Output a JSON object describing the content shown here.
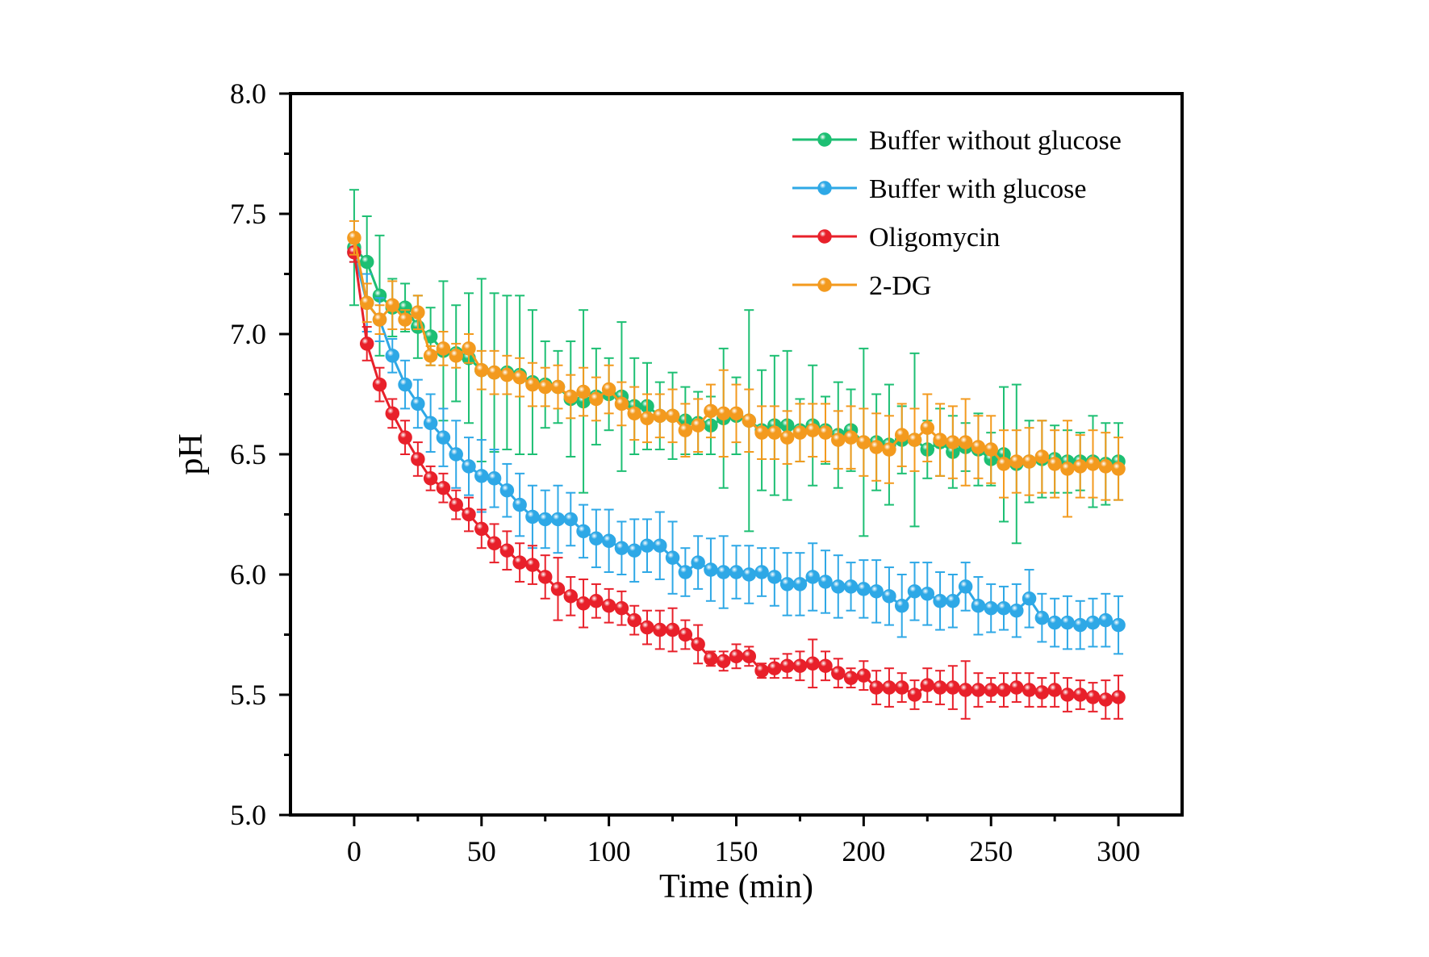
{
  "chart_data": {
    "type": "line",
    "title": "",
    "xlabel": "Time (min)",
    "ylabel": "pH",
    "xlim": [
      -25,
      325
    ],
    "ylim": [
      5.0,
      8.0
    ],
    "x_ticks": [
      0,
      50,
      100,
      150,
      200,
      250,
      300
    ],
    "x_tick_labels": [
      "0",
      "50",
      "100",
      "150",
      "200",
      "250",
      "300"
    ],
    "y_ticks": [
      5.0,
      5.5,
      6.0,
      6.5,
      7.0,
      7.5,
      8.0
    ],
    "y_tick_labels": [
      "5.0",
      "5.5",
      "6.0",
      "6.5",
      "7.0",
      "7.5",
      "8.0"
    ],
    "grid": false,
    "legend_position": "top-right",
    "x": [
      0,
      5,
      10,
      15,
      20,
      25,
      30,
      35,
      40,
      45,
      50,
      55,
      60,
      65,
      70,
      75,
      80,
      85,
      90,
      95,
      100,
      105,
      110,
      115,
      120,
      125,
      130,
      135,
      140,
      145,
      150,
      155,
      160,
      165,
      170,
      175,
      180,
      185,
      190,
      195,
      200,
      205,
      210,
      215,
      220,
      225,
      230,
      235,
      240,
      245,
      250,
      255,
      260,
      265,
      270,
      275,
      280,
      285,
      290,
      295,
      300
    ],
    "series": [
      {
        "name": "Buffer without glucose",
        "color": "#1dbf73",
        "values": [
          7.36,
          7.3,
          7.16,
          7.11,
          7.11,
          7.03,
          6.99,
          6.93,
          6.92,
          6.9,
          6.85,
          6.84,
          6.84,
          6.83,
          6.8,
          6.79,
          6.78,
          6.73,
          6.72,
          6.74,
          6.75,
          6.74,
          6.7,
          6.7,
          6.66,
          6.66,
          6.64,
          6.63,
          6.62,
          6.65,
          6.66,
          6.64,
          6.6,
          6.62,
          6.62,
          6.6,
          6.62,
          6.6,
          6.58,
          6.6,
          6.55,
          6.55,
          6.54,
          6.56,
          6.56,
          6.52,
          6.55,
          6.51,
          6.53,
          6.52,
          6.48,
          6.5,
          6.46,
          6.47,
          6.48,
          6.48,
          6.47,
          6.47,
          6.47,
          6.46,
          6.47
        ],
        "errors": [
          0.24,
          0.19,
          0.25,
          0.12,
          0.1,
          0.13,
          0.12,
          0.29,
          0.2,
          0.27,
          0.38,
          0.33,
          0.32,
          0.33,
          0.3,
          0.18,
          0.15,
          0.24,
          0.38,
          0.2,
          0.15,
          0.31,
          0.2,
          0.18,
          0.14,
          0.18,
          0.14,
          0.13,
          0.12,
          0.29,
          0.16,
          0.46,
          0.25,
          0.29,
          0.31,
          0.13,
          0.25,
          0.14,
          0.22,
          0.17,
          0.39,
          0.2,
          0.25,
          0.14,
          0.36,
          0.12,
          0.14,
          0.15,
          0.1,
          0.15,
          0.11,
          0.28,
          0.33,
          0.17,
          0.16,
          0.14,
          0.13,
          0.12,
          0.19,
          0.17,
          0.16
        ]
      },
      {
        "name": "Buffer with glucose",
        "color": "#2ea8e6",
        "values": [
          7.34,
          7.13,
          7.06,
          6.91,
          6.79,
          6.71,
          6.63,
          6.57,
          6.5,
          6.45,
          6.41,
          6.4,
          6.35,
          6.29,
          6.24,
          6.23,
          6.23,
          6.23,
          6.18,
          6.15,
          6.14,
          6.11,
          6.1,
          6.12,
          6.12,
          6.07,
          6.01,
          6.05,
          6.02,
          6.01,
          6.01,
          6.0,
          6.01,
          5.99,
          5.96,
          5.96,
          5.99,
          5.97,
          5.95,
          5.95,
          5.94,
          5.93,
          5.91,
          5.87,
          5.93,
          5.92,
          5.89,
          5.89,
          5.95,
          5.87,
          5.86,
          5.86,
          5.85,
          5.9,
          5.82,
          5.8,
          5.8,
          5.79,
          5.8,
          5.81,
          5.79
        ],
        "errors": [
          0.04,
          0.12,
          0.09,
          0.07,
          0.1,
          0.1,
          0.12,
          0.12,
          0.14,
          0.12,
          0.15,
          0.12,
          0.11,
          0.13,
          0.13,
          0.12,
          0.14,
          0.11,
          0.11,
          0.12,
          0.13,
          0.11,
          0.13,
          0.11,
          0.14,
          0.15,
          0.1,
          0.11,
          0.13,
          0.15,
          0.11,
          0.12,
          0.1,
          0.12,
          0.13,
          0.13,
          0.14,
          0.13,
          0.13,
          0.1,
          0.12,
          0.13,
          0.12,
          0.13,
          0.12,
          0.13,
          0.12,
          0.11,
          0.1,
          0.12,
          0.1,
          0.09,
          0.11,
          0.12,
          0.1,
          0.1,
          0.11,
          0.1,
          0.1,
          0.11,
          0.12
        ]
      },
      {
        "name": "Oligomycin",
        "color": "#e8202a",
        "values": [
          7.34,
          6.96,
          6.79,
          6.67,
          6.57,
          6.48,
          6.4,
          6.36,
          6.29,
          6.25,
          6.19,
          6.13,
          6.1,
          6.05,
          6.04,
          5.99,
          5.94,
          5.91,
          5.88,
          5.89,
          5.87,
          5.86,
          5.81,
          5.78,
          5.77,
          5.77,
          5.75,
          5.71,
          5.65,
          5.64,
          5.66,
          5.66,
          5.6,
          5.61,
          5.62,
          5.62,
          5.63,
          5.62,
          5.59,
          5.57,
          5.58,
          5.53,
          5.53,
          5.53,
          5.5,
          5.54,
          5.53,
          5.53,
          5.52,
          5.52,
          5.52,
          5.52,
          5.53,
          5.52,
          5.51,
          5.52,
          5.5,
          5.5,
          5.49,
          5.48,
          5.49
        ],
        "errors": [
          0.04,
          0.07,
          0.07,
          0.06,
          0.07,
          0.07,
          0.05,
          0.06,
          0.06,
          0.07,
          0.08,
          0.08,
          0.08,
          0.08,
          0.08,
          0.09,
          0.13,
          0.08,
          0.1,
          0.07,
          0.07,
          0.07,
          0.06,
          0.07,
          0.08,
          0.09,
          0.06,
          0.08,
          0.03,
          0.04,
          0.05,
          0.04,
          0.03,
          0.04,
          0.05,
          0.06,
          0.1,
          0.06,
          0.06,
          0.04,
          0.06,
          0.07,
          0.08,
          0.06,
          0.06,
          0.07,
          0.07,
          0.09,
          0.12,
          0.07,
          0.05,
          0.07,
          0.06,
          0.07,
          0.06,
          0.07,
          0.07,
          0.06,
          0.06,
          0.08,
          0.09
        ]
      },
      {
        "name": "2-DG",
        "color": "#f39a1e",
        "values": [
          7.4,
          7.13,
          7.06,
          7.12,
          7.06,
          7.09,
          6.91,
          6.94,
          6.91,
          6.94,
          6.85,
          6.84,
          6.83,
          6.82,
          6.79,
          6.78,
          6.78,
          6.74,
          6.76,
          6.73,
          6.77,
          6.71,
          6.67,
          6.65,
          6.66,
          6.66,
          6.6,
          6.62,
          6.68,
          6.67,
          6.67,
          6.64,
          6.59,
          6.59,
          6.57,
          6.59,
          6.6,
          6.59,
          6.56,
          6.57,
          6.55,
          6.53,
          6.52,
          6.58,
          6.56,
          6.61,
          6.56,
          6.55,
          6.55,
          6.53,
          6.52,
          6.46,
          6.47,
          6.47,
          6.49,
          6.46,
          6.44,
          6.45,
          6.46,
          6.45,
          6.44
        ],
        "errors": [
          0.07,
          0.08,
          0.06,
          0.1,
          0.04,
          0.07,
          0.04,
          0.07,
          0.05,
          0.06,
          0.08,
          0.09,
          0.08,
          0.08,
          0.09,
          0.08,
          0.09,
          0.09,
          0.1,
          0.09,
          0.1,
          0.09,
          0.11,
          0.1,
          0.09,
          0.11,
          0.11,
          0.11,
          0.11,
          0.18,
          0.12,
          0.13,
          0.11,
          0.11,
          0.11,
          0.12,
          0.11,
          0.12,
          0.12,
          0.13,
          0.14,
          0.14,
          0.14,
          0.13,
          0.13,
          0.14,
          0.15,
          0.15,
          0.18,
          0.13,
          0.14,
          0.14,
          0.13,
          0.14,
          0.15,
          0.14,
          0.2,
          0.13,
          0.14,
          0.14,
          0.13
        ]
      }
    ]
  }
}
